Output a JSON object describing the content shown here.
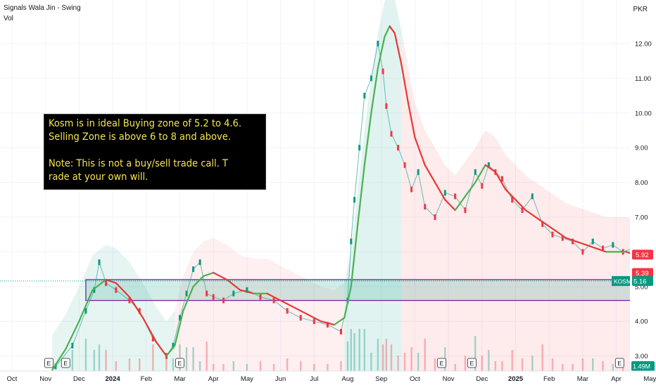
{
  "header": {
    "title": "Signals Wala Jin - Swing",
    "indicator": "Vol",
    "currency": "PKR"
  },
  "annotation": {
    "lines": [
      "Kosm is in ideal Buying zone of 5.2 to 4.6.",
      "Selling Zone is above 6 to 8 and above.",
      "",
      "Note: This is not a buy/sell trade call. T",
      "rade at your own will."
    ]
  },
  "chart_data": {
    "type": "line",
    "title": "",
    "xlabel": "",
    "ylabel": "",
    "y_ticks": [
      "12.00",
      "11.00",
      "10.00",
      "9.00",
      "8.00",
      "7.00",
      "6.00",
      "5.00",
      "4.00",
      "3.00"
    ],
    "y_tick_values": [
      12,
      11,
      10,
      9,
      8,
      7,
      6,
      5,
      4,
      3
    ],
    "ylim": [
      2.5,
      13.0
    ],
    "x_ticks": [
      "Oct",
      "Nov",
      "Dec",
      "2024",
      "Feb",
      "Mar",
      "Apr",
      "May",
      "Jun",
      "Jul",
      "Aug",
      "Sep",
      "Oct",
      "Nov",
      "Dec",
      "2025",
      "Feb",
      "Mar",
      "Apr",
      "May"
    ],
    "x_tick_index": [
      0,
      1,
      2,
      3,
      4,
      5,
      6,
      7,
      8,
      9,
      10,
      11,
      12,
      13,
      14,
      15,
      16,
      17,
      18,
      19
    ],
    "xlim": [
      0,
      20.1
    ],
    "price_labels": [
      {
        "label": "5.92",
        "value": 5.92,
        "color": "#f23645"
      },
      {
        "label": "5.39",
        "value": 5.39,
        "color": "#f23645"
      },
      {
        "label": "KOSM",
        "value": 5.16,
        "color": "#089981"
      },
      {
        "label": "5.16",
        "value": 5.16,
        "color": "#089981"
      }
    ],
    "volume_label": "1.49M",
    "buy_zone": {
      "low": 4.6,
      "high": 5.2,
      "x_start": 2.2,
      "x_end": 20.1
    },
    "earnings_markers": {
      "label": "E",
      "x": [
        1.1,
        1.6,
        5.0,
        12.8,
        13.7,
        18.1
      ]
    },
    "series": [
      {
        "name": "",
        "kind": "close",
        "x": [
          1.3,
          1.8,
          2.2,
          2.45,
          2.6,
          2.8,
          3.1,
          3.5,
          3.8,
          4.2,
          4.6,
          4.8,
          5.0,
          5.2,
          5.4,
          5.6,
          5.8,
          6.0,
          6.3,
          6.6,
          7.0,
          7.4,
          7.8,
          8.2,
          8.6,
          9.0,
          9.4,
          9.8,
          10.0,
          10.1,
          10.2,
          10.35,
          10.5,
          10.7,
          10.9,
          11.05,
          11.15,
          11.3,
          11.5,
          11.7,
          11.9,
          12.1,
          12.3,
          12.6,
          12.9,
          13.2,
          13.5,
          13.8,
          14.0,
          14.2,
          14.4,
          14.6,
          14.9,
          15.2,
          15.5,
          15.8,
          16.1,
          16.4,
          16.7,
          17.0,
          17.3,
          17.6,
          17.9,
          18.2,
          18.5,
          18.8,
          19.1,
          19.4,
          19.6,
          19.8,
          19.9
        ],
        "y": [
          2.7,
          3.3,
          4.3,
          4.9,
          5.7,
          5.1,
          4.9,
          4.6,
          4.3,
          3.5,
          3.0,
          3.3,
          4.1,
          4.8,
          5.5,
          5.7,
          4.8,
          4.7,
          4.6,
          4.8,
          4.9,
          4.7,
          4.6,
          4.3,
          4.1,
          4.0,
          3.9,
          3.7,
          4.6,
          6.3,
          7.5,
          9.0,
          10.5,
          11.0,
          12.0,
          11.2,
          10.2,
          9.4,
          9.0,
          8.5,
          7.8,
          8.3,
          7.3,
          7.0,
          7.7,
          7.6,
          7.2,
          8.3,
          7.9,
          8.5,
          8.3,
          8.1,
          7.5,
          7.2,
          7.6,
          6.8,
          6.5,
          6.4,
          6.3,
          6.0,
          6.3,
          6.1,
          6.2,
          6.0,
          6.1,
          5.8,
          6.1,
          5.9,
          5.7,
          5.3,
          5.16
        ]
      },
      {
        "name": "",
        "kind": "signal",
        "x": [
          1.2,
          1.6,
          2.0,
          2.4,
          2.8,
          3.1,
          3.5,
          3.9,
          4.3,
          4.6,
          4.85,
          5.1,
          5.4,
          5.7,
          6.0,
          6.4,
          6.8,
          7.2,
          7.6,
          8.0,
          8.4,
          8.8,
          9.2,
          9.6,
          9.9,
          10.1,
          10.3,
          10.5,
          10.7,
          10.9,
          11.1,
          11.25,
          11.4,
          11.6,
          11.8,
          12.0,
          12.3,
          12.6,
          12.9,
          13.2,
          13.5,
          13.8,
          14.1,
          14.4,
          14.7,
          15.0,
          15.3,
          15.6,
          15.9,
          16.2,
          16.5,
          16.8,
          17.1,
          17.4,
          17.7,
          18.0,
          18.3,
          18.6,
          18.9,
          19.2,
          19.5,
          19.8,
          20.0
        ],
        "y": [
          2.6,
          3.2,
          4.0,
          4.9,
          5.2,
          5.1,
          4.7,
          4.1,
          3.4,
          3.0,
          3.3,
          4.3,
          5.0,
          5.3,
          5.4,
          5.2,
          4.9,
          4.8,
          4.8,
          4.6,
          4.4,
          4.2,
          4.0,
          3.9,
          4.1,
          5.0,
          6.8,
          8.5,
          10.0,
          11.3,
          12.2,
          12.5,
          12.3,
          11.4,
          10.3,
          9.3,
          8.5,
          8.0,
          7.5,
          7.2,
          7.6,
          8.0,
          8.5,
          8.3,
          7.8,
          7.5,
          7.2,
          7.0,
          6.8,
          6.6,
          6.4,
          6.3,
          6.2,
          6.1,
          6.0,
          6.0,
          6.0,
          5.9,
          5.9,
          5.8,
          5.7,
          5.6,
          5.4
        ]
      }
    ]
  }
}
